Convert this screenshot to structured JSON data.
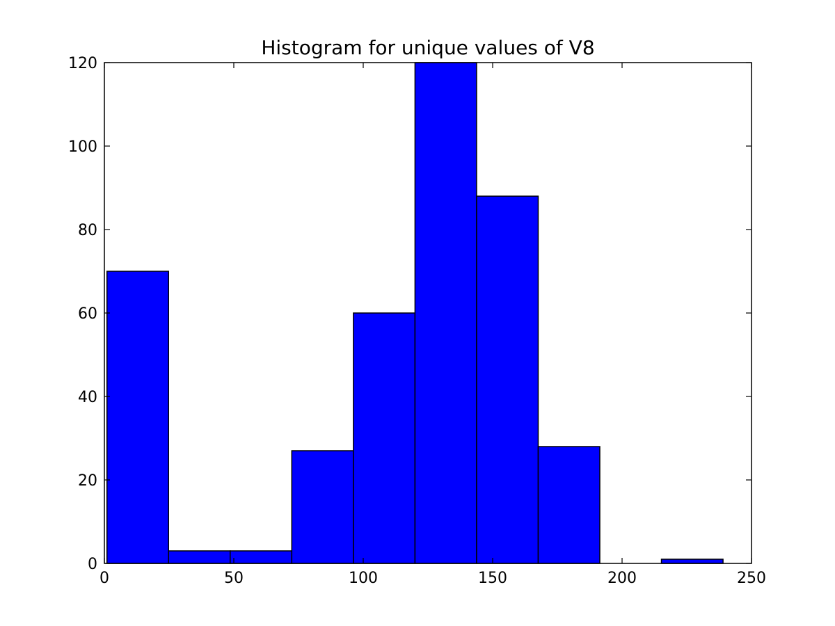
{
  "chart_data": {
    "type": "bar",
    "title": "Histogram for unique values of V8",
    "xlabel": "",
    "ylabel": "",
    "xlim": [
      0,
      250
    ],
    "ylim": [
      0,
      120
    ],
    "xticks": [
      0,
      50,
      100,
      150,
      200,
      250
    ],
    "yticks": [
      0,
      20,
      40,
      60,
      80,
      100,
      120
    ],
    "grid": false,
    "bar_color": "#0000ff",
    "edge_color": "#000000",
    "bins": [
      {
        "start": 1,
        "end": 24.8,
        "count": 70
      },
      {
        "start": 24.8,
        "end": 48.6,
        "count": 3
      },
      {
        "start": 48.6,
        "end": 72.4,
        "count": 3
      },
      {
        "start": 72.4,
        "end": 96.2,
        "count": 27
      },
      {
        "start": 96.2,
        "end": 120.0,
        "count": 60
      },
      {
        "start": 120.0,
        "end": 143.8,
        "count": 120
      },
      {
        "start": 143.8,
        "end": 167.6,
        "count": 88
      },
      {
        "start": 167.6,
        "end": 191.4,
        "count": 28
      },
      {
        "start": 191.4,
        "end": 215.2,
        "count": 0
      },
      {
        "start": 215.2,
        "end": 239.0,
        "count": 1
      }
    ]
  }
}
